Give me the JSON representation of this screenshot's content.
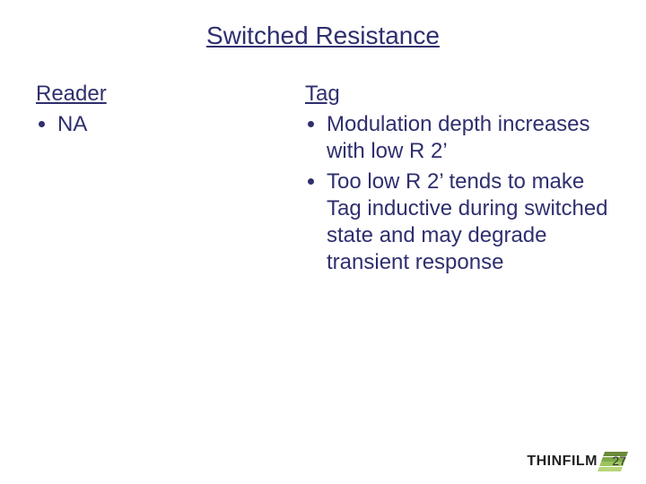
{
  "colors": {
    "text": "#2f2f6f",
    "bg": "#ffffff",
    "logo_bars": [
      "#6a8a3a",
      "#7fa84a",
      "#9cc35f",
      "#b7d57a"
    ],
    "page_num_color": "#333333",
    "logo_text_color": "#222222"
  },
  "title": "Switched Resistance",
  "left": {
    "header": "Reader",
    "items": [
      "NA"
    ]
  },
  "right": {
    "header": "Tag",
    "items": [
      "Modulation depth increases with low R 2’",
      "Too low R 2’ tends to make Tag inductive during switched state and may degrade transient response"
    ]
  },
  "logo_text": "THINFILM",
  "page_number": "27",
  "typography": {
    "title_fontsize": 28,
    "body_fontsize": 24,
    "pagenum_fontsize": 14,
    "logo_fontsize": 16
  }
}
